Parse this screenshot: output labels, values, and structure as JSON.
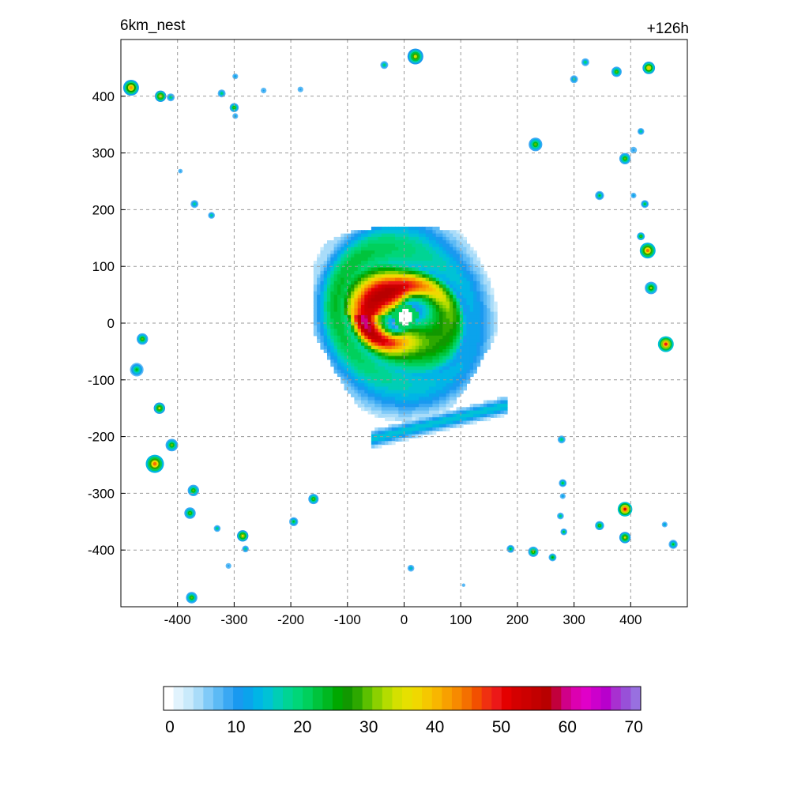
{
  "header": {
    "title_left": "6km_nest",
    "title_right": "+126h"
  },
  "chart_data": {
    "type": "heatmap",
    "title": "6km_nest",
    "subtitle": "+126h",
    "xlabel": "",
    "ylabel": "",
    "xlim": [
      -500,
      500
    ],
    "ylim": [
      -500,
      500
    ],
    "x_ticks": [
      -400,
      -300,
      -200,
      -100,
      0,
      100,
      200,
      300,
      400
    ],
    "y_ticks": [
      400,
      300,
      200,
      100,
      0,
      -100,
      -200,
      -300,
      -400
    ],
    "grid": true,
    "field": {
      "description_units": "",
      "eye_center": [
        2,
        12
      ],
      "eye_radius": 22,
      "max_value": 52
    },
    "cells": [
      {
        "x": -482,
        "y": 415,
        "r": 14,
        "v": 42
      },
      {
        "x": -430,
        "y": 400,
        "r": 10,
        "v": 38
      },
      {
        "x": -412,
        "y": 398,
        "r": 7,
        "v": 22
      },
      {
        "x": -322,
        "y": 405,
        "r": 7,
        "v": 22
      },
      {
        "x": -300,
        "y": 380,
        "r": 8,
        "v": 30
      },
      {
        "x": -298,
        "y": 365,
        "r": 5,
        "v": 15
      },
      {
        "x": -298,
        "y": 435,
        "r": 5,
        "v": 15
      },
      {
        "x": -248,
        "y": 410,
        "r": 5,
        "v": 12
      },
      {
        "x": -183,
        "y": 412,
        "r": 5,
        "v": 12
      },
      {
        "x": -35,
        "y": 455,
        "r": 7,
        "v": 22
      },
      {
        "x": 20,
        "y": 470,
        "r": 14,
        "v": 35
      },
      {
        "x": 320,
        "y": 460,
        "r": 7,
        "v": 22
      },
      {
        "x": 300,
        "y": 430,
        "r": 7,
        "v": 20
      },
      {
        "x": 375,
        "y": 443,
        "r": 9,
        "v": 30
      },
      {
        "x": 432,
        "y": 450,
        "r": 11,
        "v": 40
      },
      {
        "x": 232,
        "y": 315,
        "r": 12,
        "v": 30
      },
      {
        "x": 390,
        "y": 290,
        "r": 10,
        "v": 30
      },
      {
        "x": 405,
        "y": 305,
        "r": 6,
        "v": 12
      },
      {
        "x": 418,
        "y": 338,
        "r": 6,
        "v": 20
      },
      {
        "x": 345,
        "y": 225,
        "r": 8,
        "v": 25
      },
      {
        "x": 405,
        "y": 225,
        "r": 5,
        "v": 15
      },
      {
        "x": 425,
        "y": 210,
        "r": 7,
        "v": 25
      },
      {
        "x": 418,
        "y": 153,
        "r": 7,
        "v": 30
      },
      {
        "x": 430,
        "y": 128,
        "r": 14,
        "v": 45
      },
      {
        "x": 436,
        "y": 62,
        "r": 11,
        "v": 32
      },
      {
        "x": 462,
        "y": -37,
        "r": 14,
        "v": 50
      },
      {
        "x": -370,
        "y": 210,
        "r": 7,
        "v": 20
      },
      {
        "x": -340,
        "y": 190,
        "r": 6,
        "v": 20
      },
      {
        "x": -395,
        "y": 268,
        "r": 4,
        "v": 12
      },
      {
        "x": -462,
        "y": -28,
        "r": 10,
        "v": 30
      },
      {
        "x": -472,
        "y": -82,
        "r": 12,
        "v": 25
      },
      {
        "x": -432,
        "y": -150,
        "r": 10,
        "v": 35
      },
      {
        "x": -410,
        "y": -215,
        "r": 11,
        "v": 30
      },
      {
        "x": -440,
        "y": -248,
        "r": 16,
        "v": 46
      },
      {
        "x": -372,
        "y": -295,
        "r": 10,
        "v": 30
      },
      {
        "x": -378,
        "y": -335,
        "r": 10,
        "v": 30
      },
      {
        "x": -330,
        "y": -362,
        "r": 6,
        "v": 22
      },
      {
        "x": -285,
        "y": -375,
        "r": 10,
        "v": 38
      },
      {
        "x": -280,
        "y": -398,
        "r": 6,
        "v": 20
      },
      {
        "x": -195,
        "y": -350,
        "r": 8,
        "v": 25
      },
      {
        "x": -160,
        "y": -310,
        "r": 9,
        "v": 30
      },
      {
        "x": -310,
        "y": -428,
        "r": 5,
        "v": 12
      },
      {
        "x": -375,
        "y": -484,
        "r": 10,
        "v": 30
      },
      {
        "x": 278,
        "y": -205,
        "r": 7,
        "v": 22
      },
      {
        "x": 280,
        "y": -282,
        "r": 7,
        "v": 25
      },
      {
        "x": 280,
        "y": -305,
        "r": 5,
        "v": 15
      },
      {
        "x": 276,
        "y": -340,
        "r": 6,
        "v": 22
      },
      {
        "x": 282,
        "y": -368,
        "r": 6,
        "v": 25
      },
      {
        "x": 390,
        "y": -328,
        "r": 13,
        "v": 52
      },
      {
        "x": 345,
        "y": -357,
        "r": 8,
        "v": 30
      },
      {
        "x": 390,
        "y": -378,
        "r": 10,
        "v": 35
      },
      {
        "x": 188,
        "y": -398,
        "r": 7,
        "v": 25
      },
      {
        "x": 228,
        "y": -403,
        "r": 9,
        "v": 32
      },
      {
        "x": 262,
        "y": -413,
        "r": 7,
        "v": 28
      },
      {
        "x": 12,
        "y": -432,
        "r": 6,
        "v": 18
      },
      {
        "x": 460,
        "y": -355,
        "r": 5,
        "v": 18
      },
      {
        "x": 475,
        "y": -390,
        "r": 8,
        "v": 25
      },
      {
        "x": 105,
        "y": -462,
        "r": 3,
        "v": 10
      }
    ],
    "colorbar": {
      "ticks": [
        0,
        10,
        20,
        30,
        40,
        50,
        60,
        70
      ],
      "min": 0,
      "max": 72,
      "levels": [
        "#ffffff",
        "#e1f3fd",
        "#c9eafb",
        "#a9dcf9",
        "#80caf8",
        "#5cbaf5",
        "#3aa8f3",
        "#1999f0",
        "#0ba3ec",
        "#00b5e6",
        "#00c2d6",
        "#00ceb5",
        "#00d494",
        "#00d678",
        "#00d05c",
        "#00c43c",
        "#00b820",
        "#00a800",
        "#119800",
        "#2da800",
        "#5cc000",
        "#8cd000",
        "#b4dc00",
        "#d4e000",
        "#e6e000",
        "#f0d800",
        "#f5c800",
        "#f8b600",
        "#f8a000",
        "#f78a00",
        "#f47000",
        "#f25000",
        "#f03010",
        "#ec1818",
        "#e40000",
        "#d40000",
        "#cc0000",
        "#c20000",
        "#b80000",
        "#c2003c",
        "#d00088",
        "#dc00b0",
        "#e000c8",
        "#cc00cc",
        "#b800cc",
        "#a830d0",
        "#9850d8",
        "#9870e0"
      ]
    }
  }
}
